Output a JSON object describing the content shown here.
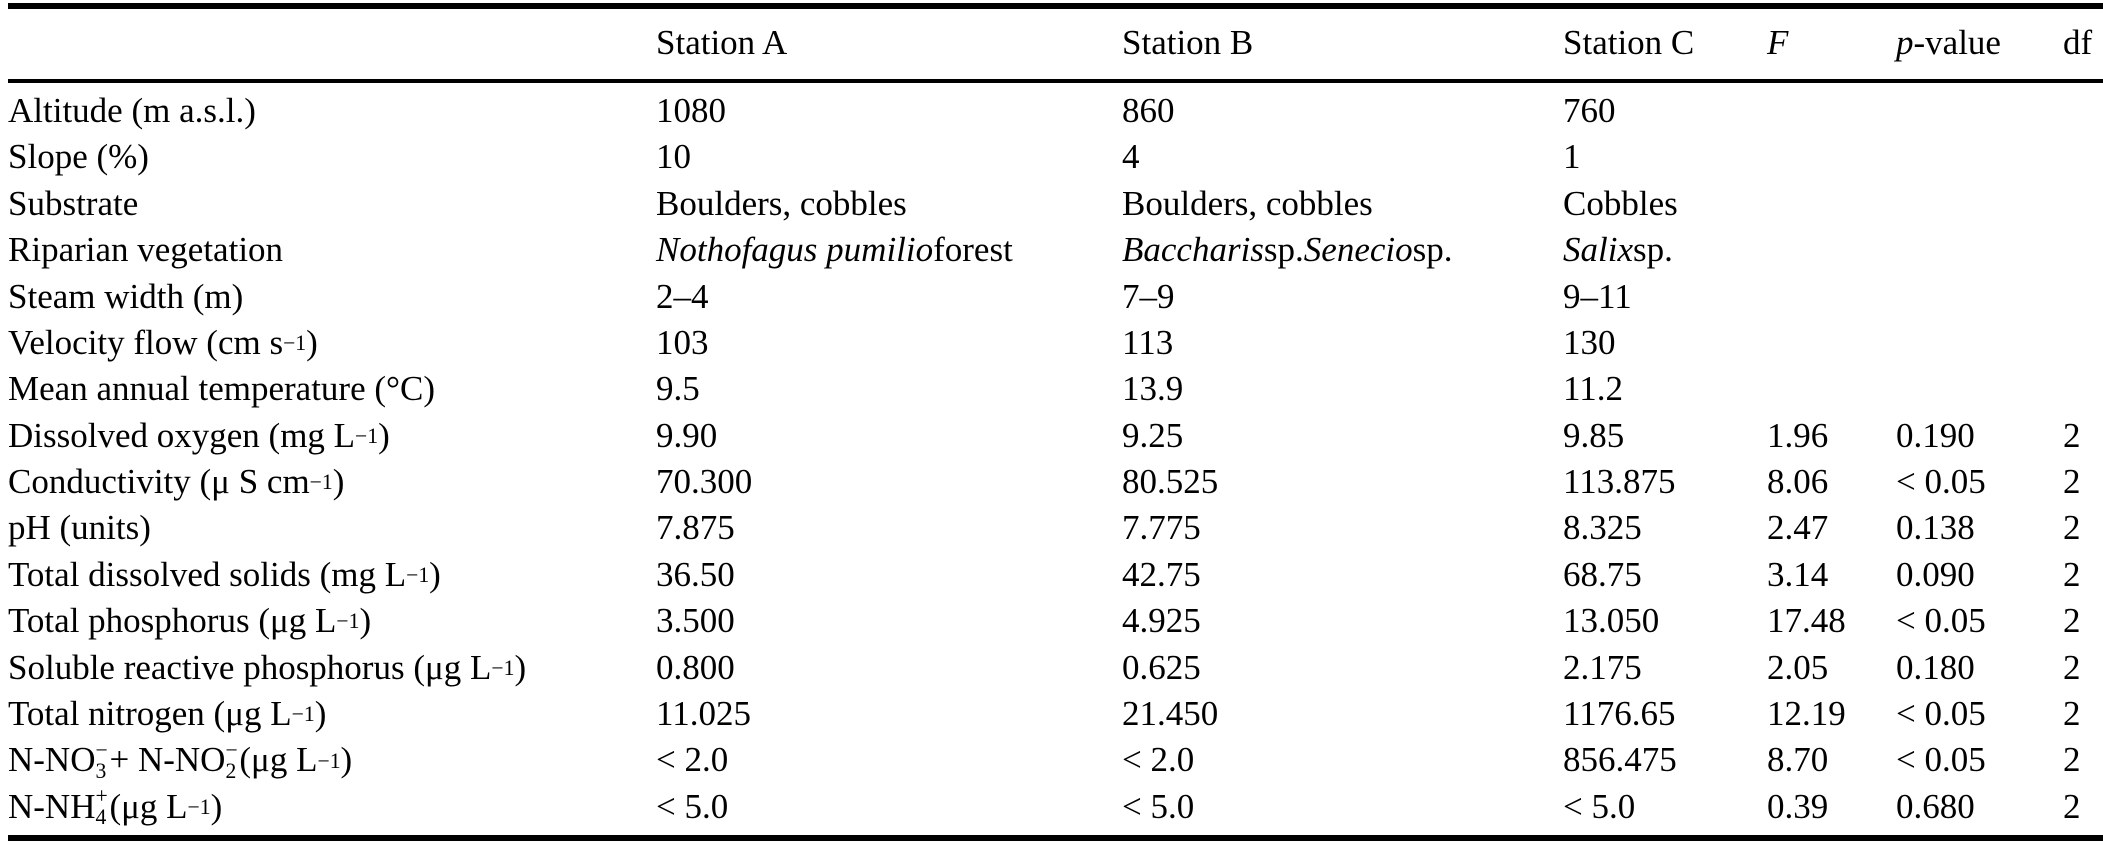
{
  "colors": {
    "background": "#ffffff",
    "text": "#000000",
    "rule": "#000000"
  },
  "table": {
    "header": {
      "columns": [
        "",
        "Station A",
        "Station B",
        "Station C",
        "*F*",
        "*p*-value",
        "df"
      ]
    },
    "rows": [
      {
        "label": "Altitude (m a.s.l.)",
        "station_a": "1080",
        "station_b": "860",
        "station_c": "760",
        "f": "",
        "p": "",
        "df": ""
      },
      {
        "label": "Slope (%)",
        "station_a": "10",
        "station_b": "4",
        "station_c": "1",
        "f": "",
        "p": "",
        "df": ""
      },
      {
        "label": "Substrate",
        "station_a": "Boulders, cobbles",
        "station_b": "Boulders, cobbles",
        "station_c": "Cobbles",
        "f": "",
        "p": "",
        "df": ""
      },
      {
        "label": "Riparian vegetation",
        "station_a": "*Nothofagus pumilio* forest",
        "station_b": "*Baccharis* sp. *Senecio* sp.",
        "station_c": "*Salix* sp.",
        "f": "",
        "p": "",
        "df": ""
      },
      {
        "label": "Steam width (m)",
        "station_a": "2–4",
        "station_b": "7–9",
        "station_c": "9–11",
        "f": "",
        "p": "",
        "df": ""
      },
      {
        "label": "Velocity flow (cm s^{−1})",
        "station_a": "103",
        "station_b": "113",
        "station_c": "130",
        "f": "",
        "p": "",
        "df": ""
      },
      {
        "label": "Mean annual temperature (°C)",
        "station_a": "9.5",
        "station_b": "13.9",
        "station_c": "11.2",
        "f": "",
        "p": "",
        "df": ""
      },
      {
        "label": "Dissolved oxygen (mg L^{−1})",
        "station_a": "9.90",
        "station_b": "9.25",
        "station_c": "9.85",
        "f": "1.96",
        "p": "0.190",
        "df": "2"
      },
      {
        "label": "Conductivity (μ S cm^{−1})",
        "station_a": "70.300",
        "station_b": "80.525",
        "station_c": "113.875",
        "f": "8.06",
        "p": "< 0.05",
        "df": "2"
      },
      {
        "label": "pH (units)",
        "station_a": "7.875",
        "station_b": "7.775",
        "station_c": "8.325",
        "f": "2.47",
        "p": "0.138",
        "df": "2"
      },
      {
        "label": "Total dissolved solids (mg L^{−1})",
        "station_a": "36.50",
        "station_b": "42.75",
        "station_c": "68.75",
        "f": "3.14",
        "p": "0.090",
        "df": "2"
      },
      {
        "label": "Total phosphorus (μg L^{−1})",
        "station_a": "3.500",
        "station_b": "4.925",
        "station_c": "13.050",
        "f": "17.48",
        "p": "< 0.05",
        "df": "2"
      },
      {
        "label": "Soluble reactive phosphorus (μg L^{−1})",
        "station_a": "0.800",
        "station_b": "0.625",
        "station_c": "2.175",
        "f": "2.05",
        "p": "0.180",
        "df": "2"
      },
      {
        "label": "Total nitrogen (μg L^{−1})",
        "station_a": "11.025",
        "station_b": "21.450",
        "station_c": "1176.65",
        "f": "12.19",
        "p": "< 0.05",
        "df": "2"
      },
      {
        "label": "N-NO${3|−} + N-NO${2|−} (μg L^{−1})",
        "station_a": "< 2.0",
        "station_b": "< 2.0",
        "station_c": "856.475",
        "f": "8.70",
        "p": "< 0.05",
        "df": "2"
      },
      {
        "label": "N-NH${4|+} (μg L^{−1})",
        "station_a": "< 5.0",
        "station_b": "< 5.0",
        "station_c": "< 5.0",
        "f": "0.39",
        "p": "0.680",
        "df": "2"
      }
    ]
  }
}
